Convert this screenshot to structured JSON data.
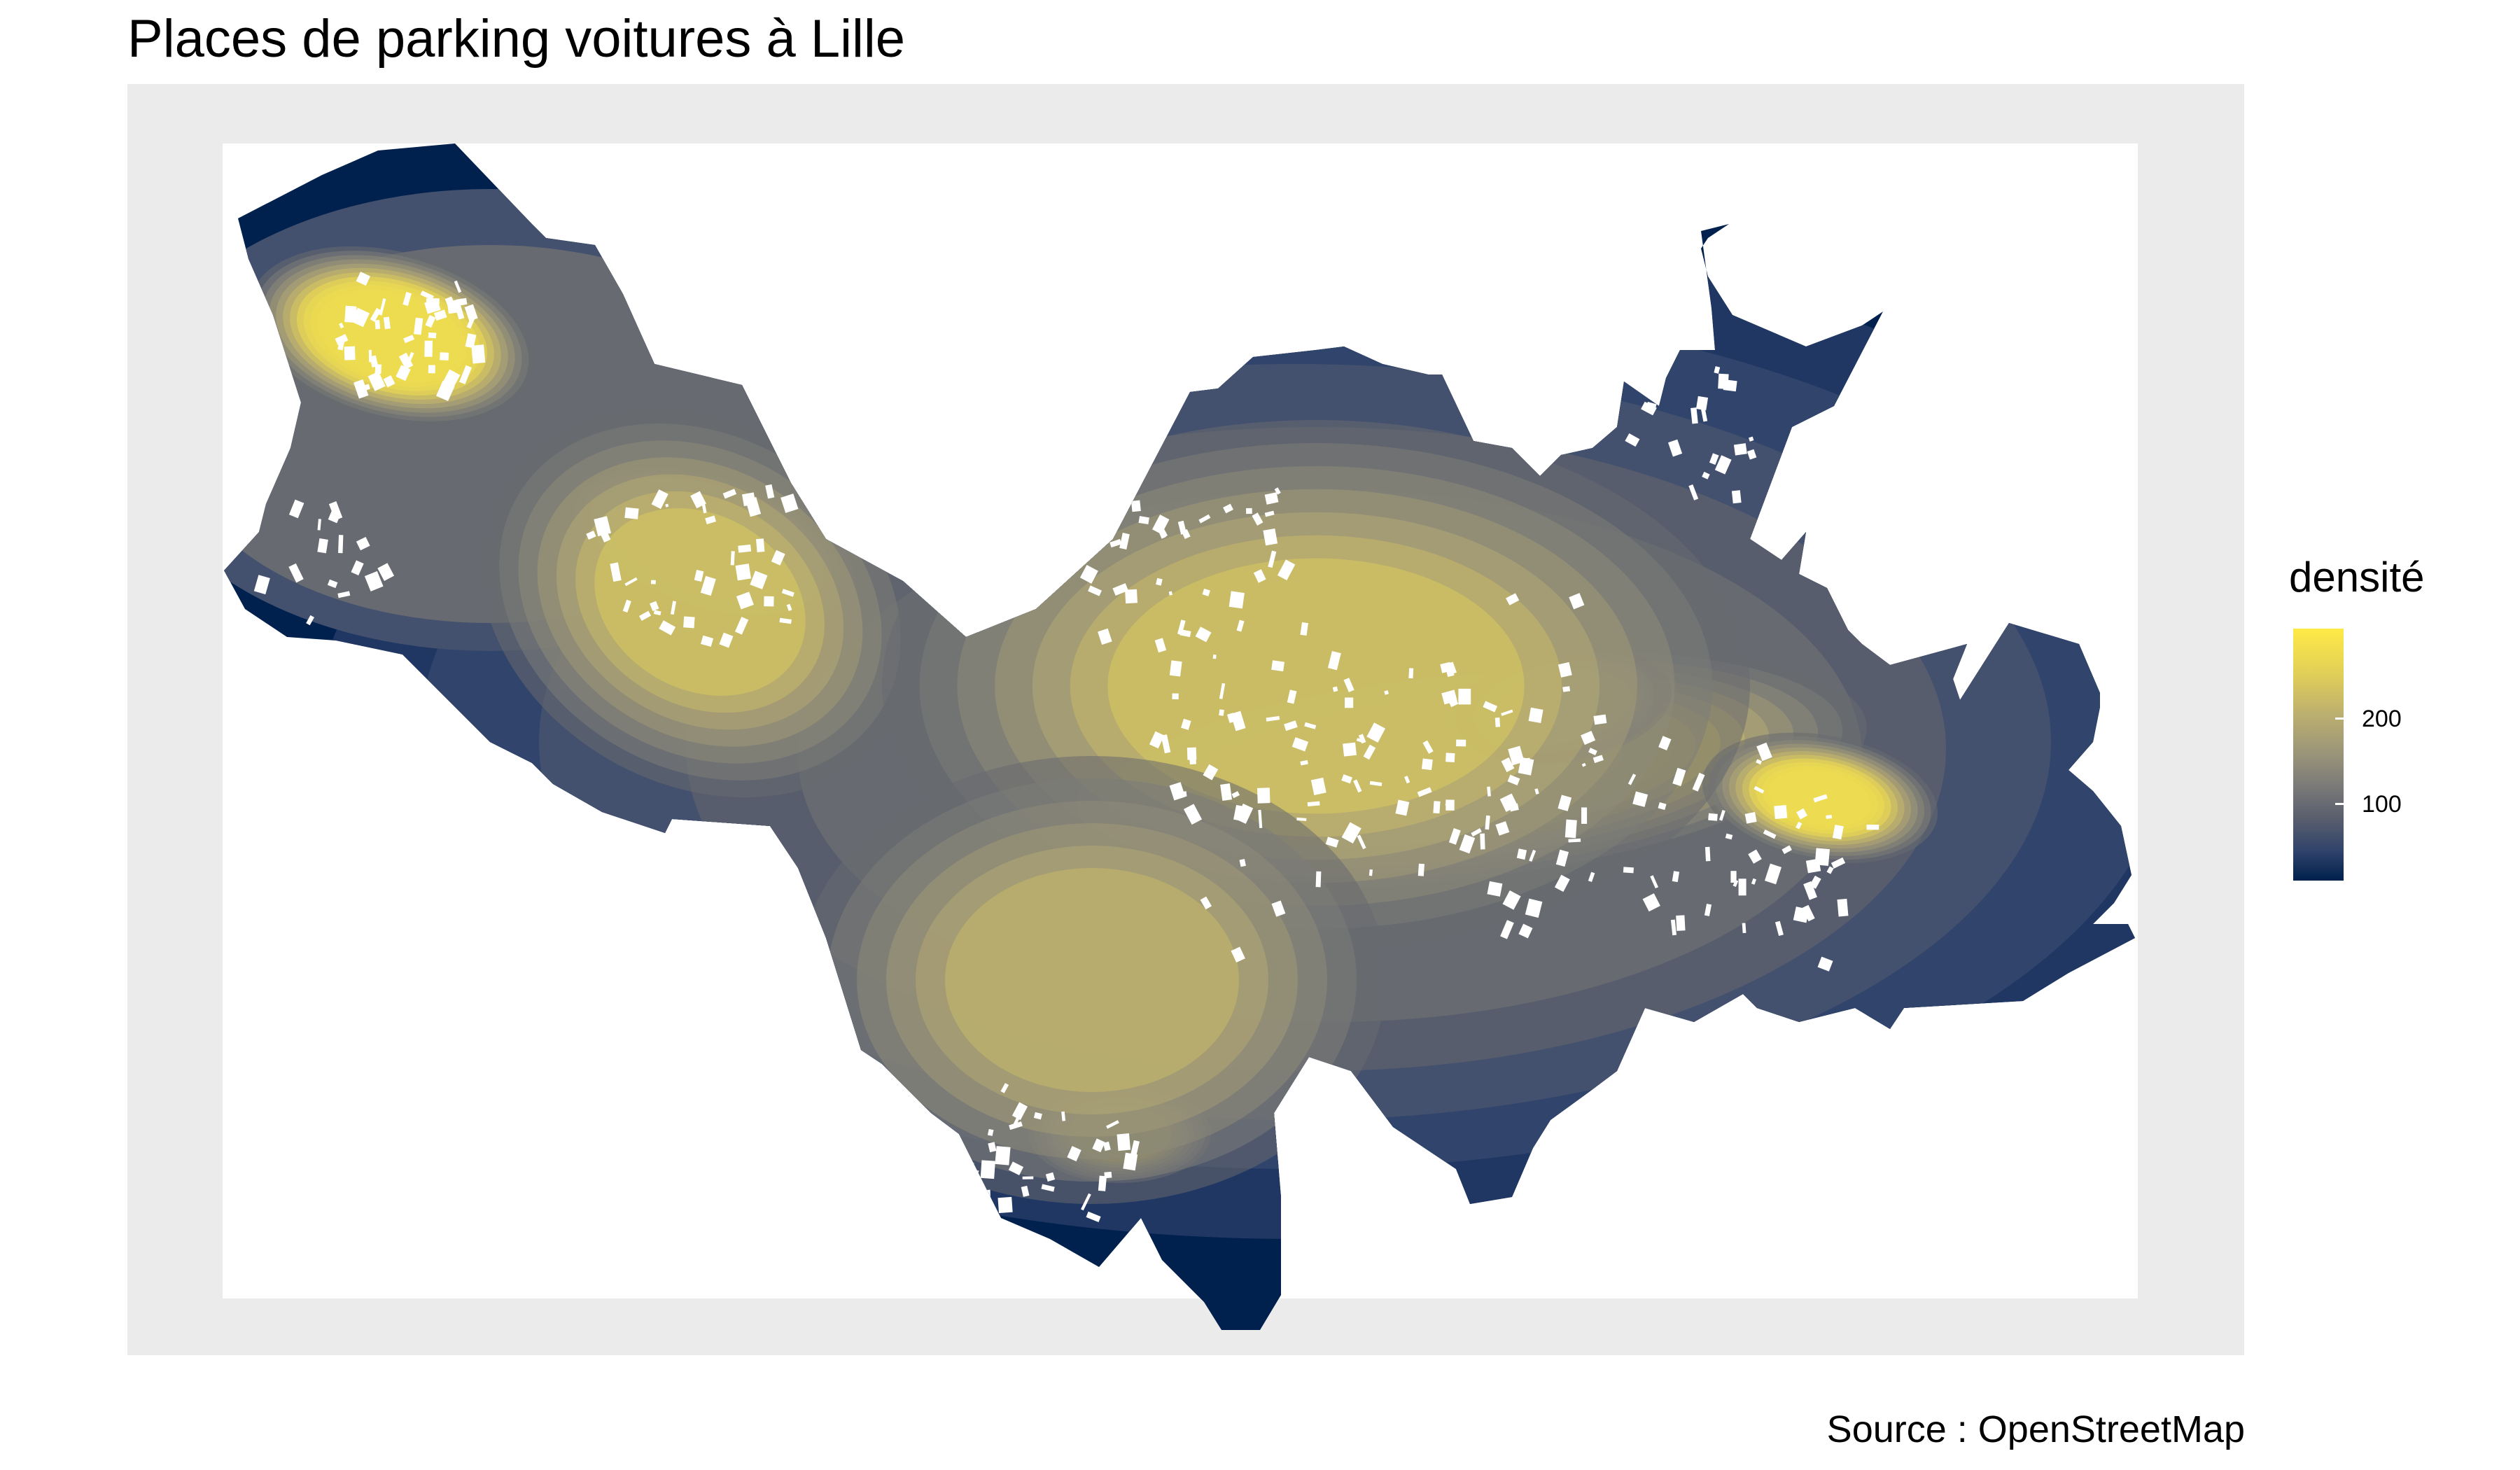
{
  "title": "Places de parking voitures à Lille",
  "caption": "Source : OpenStreetMap",
  "legend": {
    "title": "densité",
    "ticks": [
      {
        "label": "200",
        "value": 200
      },
      {
        "label": "100",
        "value": 100
      }
    ],
    "range": [
      20,
      290
    ],
    "colors": {
      "low": "#00204D",
      "mid": "#7C7B78",
      "high": "#FFEA46"
    }
  },
  "colors": {
    "panel_background": "#EBEBEB",
    "map_background": "#FFFFFF",
    "parking_fill": "#FFFFFF",
    "contour_band_count": 13
  },
  "chart_data": {
    "type": "heatmap",
    "title": "Places de parking voitures à Lille",
    "caption": "Source : OpenStreetMap",
    "legend_title": "densité",
    "legend_ticks": [
      100,
      200
    ],
    "value_range": [
      20,
      290
    ],
    "colormap": "cividis",
    "grid": false,
    "legend_position": "right",
    "density_peaks": [
      {
        "location": "north-west",
        "approx_value": 290
      },
      {
        "location": "west-centre",
        "approx_value": 260
      },
      {
        "location": "centre",
        "approx_value": 250
      },
      {
        "location": "east-centre",
        "approx_value": 245
      },
      {
        "location": "east",
        "approx_value": 235
      },
      {
        "location": "south",
        "approx_value": 225
      }
    ]
  }
}
